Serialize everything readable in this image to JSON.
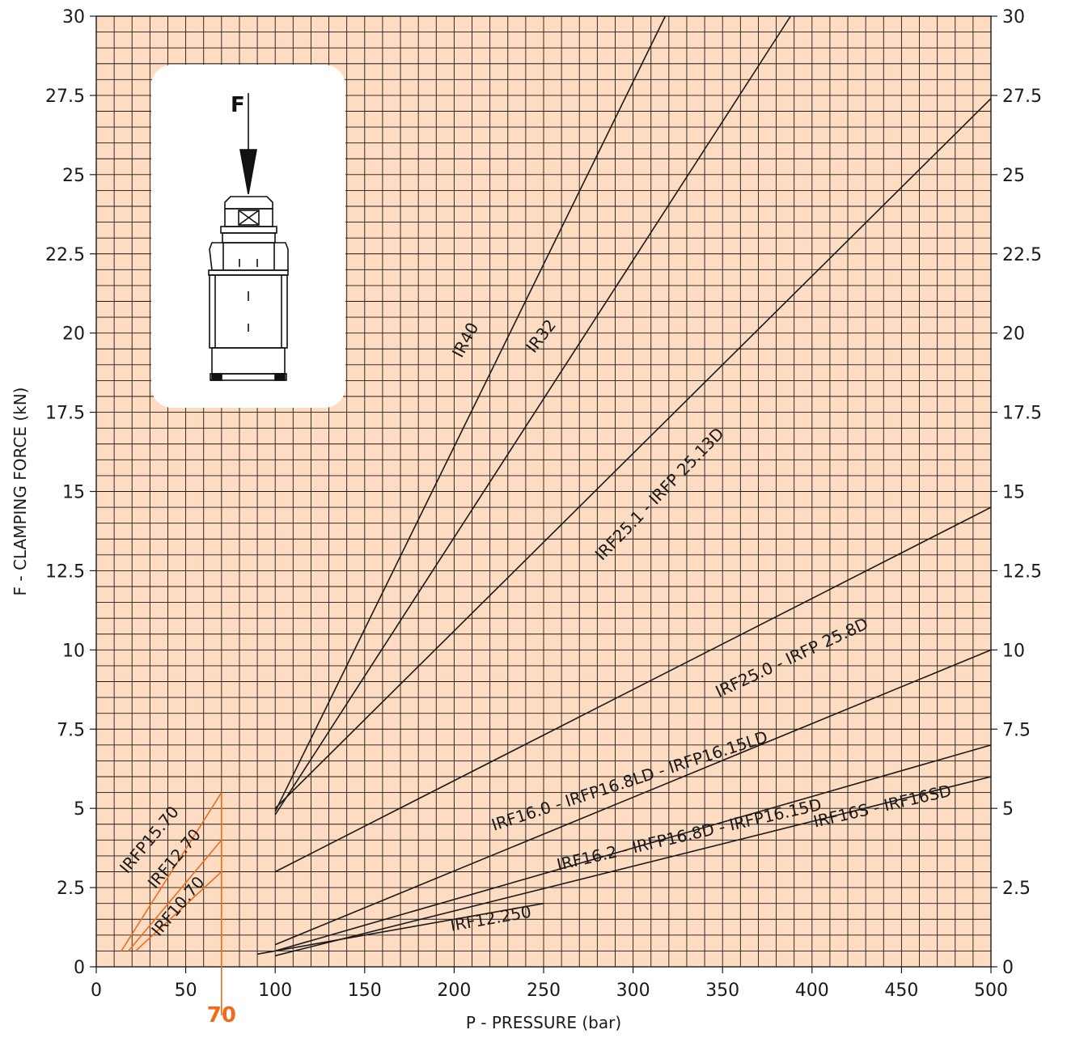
{
  "chart_data": {
    "type": "line",
    "xlabel": "P - PRESSURE (bar)",
    "ylabel": "F - CLAMPING FORCE   (kN)",
    "xlim": [
      0,
      500
    ],
    "ylim": [
      0,
      30
    ],
    "x_ticks": [
      0,
      50,
      100,
      150,
      200,
      250,
      300,
      350,
      400,
      450,
      500
    ],
    "y_ticks": [
      0,
      2.5,
      5,
      7.5,
      10,
      12.5,
      15,
      17.5,
      20,
      22.5,
      25,
      27.5,
      30
    ],
    "y_tick_labels": [
      "0",
      "2.5",
      "5",
      "7.5",
      "10",
      "12.5",
      "15",
      "17.5",
      "20",
      "22.5",
      "25",
      "27.5",
      "30"
    ],
    "grid": true,
    "minor_grid_step": {
      "x": 10,
      "y": 0.5
    },
    "colors": {
      "background": "#fddcc2",
      "grid": "#1a1a1a",
      "line": "#1a1a1a",
      "accent": "#f26b1d",
      "inset_bg": "#ffffff"
    },
    "marker": {
      "x": 70,
      "label": "70",
      "ymax": 5.5
    },
    "series": [
      {
        "name": "IR40",
        "color": "#1a1a1a",
        "x": [
          100,
          318
        ],
        "y": [
          4.9,
          30
        ],
        "label_at": [
          209,
          19.7
        ],
        "label_angle": -62
      },
      {
        "name": "IR32",
        "color": "#1a1a1a",
        "x": [
          100,
          388
        ],
        "y": [
          4.8,
          30
        ],
        "label_at": [
          251,
          19.8
        ],
        "label_angle": -52
      },
      {
        "name": "IRF25.1 - IRFP 25.13D",
        "color": "#1a1a1a",
        "x": [
          100,
          500
        ],
        "y": [
          5.0,
          27.4
        ],
        "label_at": [
          317,
          14.8
        ],
        "label_angle": -46
      },
      {
        "name": "IRF25.0 - IRFP 25.8D",
        "color": "#1a1a1a",
        "x": [
          100,
          500
        ],
        "y": [
          3.0,
          14.5
        ],
        "label_at": [
          390,
          9.6
        ],
        "label_angle": -25
      },
      {
        "name": "IRF16.0 - IRFP16.8LD - IRFP16.15LD",
        "color": "#1a1a1a",
        "x": [
          100,
          500
        ],
        "y": [
          0.7,
          10.0
        ],
        "label_at": [
          299,
          5.7
        ],
        "label_angle": -18
      },
      {
        "name": "IRF16.2 - IRFP16.8D - IRFP16.15D",
        "color": "#1a1a1a",
        "x": [
          100,
          500
        ],
        "y": [
          0.5,
          7.0
        ],
        "label_at": [
          332,
          4.0
        ],
        "label_angle": -13
      },
      {
        "name": "IRF16S - IRF16SD",
        "color": "#1a1a1a",
        "x": [
          100,
          500
        ],
        "y": [
          0.35,
          6.0
        ],
        "label_at": [
          440,
          4.9
        ],
        "label_angle": -13
      },
      {
        "name": "IRF12.250",
        "color": "#1a1a1a",
        "x": [
          90,
          250
        ],
        "y": [
          0.4,
          2.0
        ],
        "label_at": [
          221,
          1.35
        ],
        "label_angle": -10
      },
      {
        "name": "IRFP15.70",
        "color": "#f26b1d",
        "x": [
          14,
          70
        ],
        "y": [
          0.5,
          5.5
        ],
        "label_at": [
          32,
          3.9
        ],
        "label_angle": -50
      },
      {
        "name": "IRF12.70",
        "color": "#f26b1d",
        "x": [
          18,
          70
        ],
        "y": [
          0.5,
          4.0
        ],
        "label_at": [
          46,
          3.3
        ],
        "label_angle": -50
      },
      {
        "name": "IRF10.70",
        "color": "#f26b1d",
        "x": [
          22,
          70
        ],
        "y": [
          0.5,
          3.0
        ],
        "label_at": [
          48,
          1.8
        ],
        "label_angle": -50
      }
    ],
    "inset": {
      "force_label": "F",
      "icon": "clamping-cylinder-icon"
    }
  }
}
